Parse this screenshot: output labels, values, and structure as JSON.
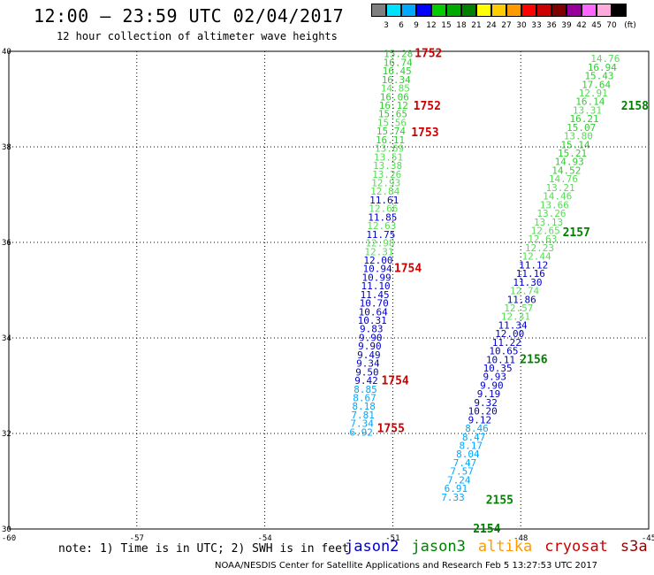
{
  "title": "12:00 – 23:59 UTC 02/04/2017",
  "subtitle": "12 hour collection of altimeter wave heights",
  "color_scale": {
    "unit": "(ft)",
    "labels": [
      "3",
      "6",
      "9",
      "12",
      "15",
      "18",
      "21",
      "24",
      "27",
      "30",
      "33",
      "36",
      "39",
      "42",
      "45",
      "70"
    ],
    "colors": [
      "#7f7f7f",
      "#00e0ff",
      "#00a8ff",
      "#0000ff",
      "#00cc00",
      "#00aa00",
      "#008000",
      "#ffff00",
      "#ffcc00",
      "#ff9900",
      "#ff0000",
      "#cc0000",
      "#800000",
      "#990099",
      "#ff66ff",
      "#ffaadd",
      "#000000"
    ]
  },
  "note": "note: 1) Time is in UTC; 2) SWH is in feet",
  "satellites": [
    {
      "name": "jason2",
      "color": "#0000cc"
    },
    {
      "name": "jason3",
      "color": "#008000"
    },
    {
      "name": "altika",
      "color": "#ff9900"
    },
    {
      "name": "cryosat",
      "color": "#cc0000"
    },
    {
      "name": "s3a",
      "color": "#990000"
    }
  ],
  "footer": "NOAA/NESDIS Center for Satellite Applications and Research    Feb  5 13:27:53 UTC 2017",
  "chart_data": {
    "type": "scatter",
    "xlim": [
      -60,
      -45
    ],
    "ylim": [
      30,
      40
    ],
    "x_ticks": [
      "-60",
      "-57",
      "-54",
      "-51",
      "-48",
      "-45"
    ],
    "y_ticks": [
      "30",
      "32",
      "34",
      "36",
      "38",
      "40"
    ],
    "grid": true,
    "track1_points": [
      {
        "label": "15.28",
        "lon": -50.87,
        "lat": 39.95,
        "color": "#33cc33"
      },
      {
        "label": "16.74",
        "lon": -50.88,
        "lat": 39.77,
        "color": "#33cc33"
      },
      {
        "label": "16.45",
        "lon": -50.9,
        "lat": 39.59,
        "color": "#33cc33"
      },
      {
        "label": "16.34",
        "lon": -50.92,
        "lat": 39.41,
        "color": "#33cc33"
      },
      {
        "label": "14.85",
        "lon": -50.94,
        "lat": 39.23,
        "color": "#55dd55"
      },
      {
        "label": "16.06",
        "lon": -50.96,
        "lat": 39.05,
        "color": "#33cc33"
      },
      {
        "label": "16.12",
        "lon": -50.98,
        "lat": 38.87,
        "color": "#33cc33"
      },
      {
        "label": "15.65",
        "lon": -51.0,
        "lat": 38.69,
        "color": "#33cc33"
      },
      {
        "label": "15.56",
        "lon": -51.02,
        "lat": 38.51,
        "color": "#55dd55"
      },
      {
        "label": "15.74",
        "lon": -51.04,
        "lat": 38.33,
        "color": "#33cc33"
      },
      {
        "label": "16.11",
        "lon": -51.06,
        "lat": 38.15,
        "color": "#33cc33"
      },
      {
        "label": "13.69",
        "lon": -51.08,
        "lat": 37.97,
        "color": "#55dd55"
      },
      {
        "label": "13.51",
        "lon": -51.1,
        "lat": 37.79,
        "color": "#55dd55"
      },
      {
        "label": "13.38",
        "lon": -51.12,
        "lat": 37.61,
        "color": "#55dd55"
      },
      {
        "label": "13.26",
        "lon": -51.14,
        "lat": 37.43,
        "color": "#55dd55"
      },
      {
        "label": "12.93",
        "lon": -51.16,
        "lat": 37.25,
        "color": "#55dd55"
      },
      {
        "label": "12.84",
        "lon": -51.18,
        "lat": 37.07,
        "color": "#55dd55"
      },
      {
        "label": "11.61",
        "lon": -51.2,
        "lat": 36.89,
        "color": "#0000cc"
      },
      {
        "label": "12.66",
        "lon": -51.22,
        "lat": 36.71,
        "color": "#55dd55"
      },
      {
        "label": "11.85",
        "lon": -51.24,
        "lat": 36.53,
        "color": "#0000cc"
      },
      {
        "label": "12.63",
        "lon": -51.26,
        "lat": 36.35,
        "color": "#55dd55"
      },
      {
        "label": "11.75",
        "lon": -51.28,
        "lat": 36.17,
        "color": "#0000cc"
      },
      {
        "label": "12.98",
        "lon": -51.3,
        "lat": 35.99,
        "color": "#55dd55"
      },
      {
        "label": "12.31",
        "lon": -51.32,
        "lat": 35.81,
        "color": "#55dd55"
      },
      {
        "label": "12.00",
        "lon": -51.34,
        "lat": 35.63,
        "color": "#0000cc"
      },
      {
        "label": "10.94",
        "lon": -51.36,
        "lat": 35.45,
        "color": "#0000cc"
      },
      {
        "label": "10.99",
        "lon": -51.38,
        "lat": 35.27,
        "color": "#0000cc"
      },
      {
        "label": "11.10",
        "lon": -51.4,
        "lat": 35.09,
        "color": "#0000cc"
      },
      {
        "label": "11.45",
        "lon": -51.42,
        "lat": 34.91,
        "color": "#0000cc"
      },
      {
        "label": "10.70",
        "lon": -51.44,
        "lat": 34.73,
        "color": "#0000cc"
      },
      {
        "label": "10.64",
        "lon": -51.46,
        "lat": 34.55,
        "color": "#0000cc"
      },
      {
        "label": "10.31",
        "lon": -51.48,
        "lat": 34.37,
        "color": "#0000cc"
      },
      {
        "label": "9.83",
        "lon": -51.5,
        "lat": 34.19,
        "color": "#0000cc"
      },
      {
        "label": "9.90",
        "lon": -51.52,
        "lat": 34.01,
        "color": "#0000cc"
      },
      {
        "label": "9.90",
        "lon": -51.54,
        "lat": 33.83,
        "color": "#0000cc"
      },
      {
        "label": "9.49",
        "lon": -51.56,
        "lat": 33.65,
        "color": "#0000cc"
      },
      {
        "label": "9.34",
        "lon": -51.58,
        "lat": 33.47,
        "color": "#0000cc"
      },
      {
        "label": "9.50",
        "lon": -51.6,
        "lat": 33.29,
        "color": "#0000cc"
      },
      {
        "label": "9.42",
        "lon": -51.62,
        "lat": 33.11,
        "color": "#0000cc"
      },
      {
        "label": "8.85",
        "lon": -51.64,
        "lat": 32.93,
        "color": "#00a8ff"
      },
      {
        "label": "8.67",
        "lon": -51.66,
        "lat": 32.75,
        "color": "#00a8ff"
      },
      {
        "label": "8.18",
        "lon": -51.68,
        "lat": 32.57,
        "color": "#00a8ff"
      },
      {
        "label": "7.81",
        "lon": -51.7,
        "lat": 32.39,
        "color": "#00a8ff"
      },
      {
        "label": "7.34",
        "lon": -51.72,
        "lat": 32.21,
        "color": "#00a8ff"
      },
      {
        "label": "6.92",
        "lon": -51.74,
        "lat": 32.03,
        "color": "#00a8ff"
      }
    ],
    "track2_points": [
      {
        "label": "14.76",
        "lon": -46.02,
        "lat": 39.85,
        "color": "#55dd55"
      },
      {
        "label": "16.94",
        "lon": -46.09,
        "lat": 39.67,
        "color": "#33cc33"
      },
      {
        "label": "15.43",
        "lon": -46.16,
        "lat": 39.49,
        "color": "#33cc33"
      },
      {
        "label": "17.64",
        "lon": -46.23,
        "lat": 39.31,
        "color": "#33cc33"
      },
      {
        "label": "12.91",
        "lon": -46.3,
        "lat": 39.13,
        "color": "#55dd55"
      },
      {
        "label": "16.14",
        "lon": -46.37,
        "lat": 38.95,
        "color": "#33cc33"
      },
      {
        "label": "13.31",
        "lon": -46.44,
        "lat": 38.77,
        "color": "#55dd55"
      },
      {
        "label": "16.21",
        "lon": -46.51,
        "lat": 38.59,
        "color": "#33cc33"
      },
      {
        "label": "15.07",
        "lon": -46.58,
        "lat": 38.41,
        "color": "#33cc33"
      },
      {
        "label": "13.80",
        "lon": -46.65,
        "lat": 38.23,
        "color": "#55dd55"
      },
      {
        "label": "15.14",
        "lon": -46.72,
        "lat": 38.05,
        "color": "#33cc33"
      },
      {
        "label": "15.21",
        "lon": -46.79,
        "lat": 37.87,
        "color": "#33cc33"
      },
      {
        "label": "14.93",
        "lon": -46.86,
        "lat": 37.69,
        "color": "#33cc33"
      },
      {
        "label": "14.52",
        "lon": -46.93,
        "lat": 37.51,
        "color": "#33cc33"
      },
      {
        "label": "14.76",
        "lon": -47.0,
        "lat": 37.33,
        "color": "#55dd55"
      },
      {
        "label": "13.21",
        "lon": -47.07,
        "lat": 37.15,
        "color": "#55dd55"
      },
      {
        "label": "14.46",
        "lon": -47.14,
        "lat": 36.97,
        "color": "#55dd55"
      },
      {
        "label": "13.66",
        "lon": -47.21,
        "lat": 36.79,
        "color": "#55dd55"
      },
      {
        "label": "13.26",
        "lon": -47.28,
        "lat": 36.61,
        "color": "#55dd55"
      },
      {
        "label": "13.13",
        "lon": -47.35,
        "lat": 36.43,
        "color": "#55dd55"
      },
      {
        "label": "12.65",
        "lon": -47.42,
        "lat": 36.25,
        "color": "#55dd55"
      },
      {
        "label": "12.63",
        "lon": -47.49,
        "lat": 36.07,
        "color": "#55dd55"
      },
      {
        "label": "12.23",
        "lon": -47.56,
        "lat": 35.89,
        "color": "#55dd55"
      },
      {
        "label": "12.44",
        "lon": -47.63,
        "lat": 35.71,
        "color": "#55dd55"
      },
      {
        "label": "11.12",
        "lon": -47.7,
        "lat": 35.53,
        "color": "#0000cc"
      },
      {
        "label": "11.16",
        "lon": -47.77,
        "lat": 35.35,
        "color": "#0000cc"
      },
      {
        "label": "11.30",
        "lon": -47.84,
        "lat": 35.17,
        "color": "#0000cc"
      },
      {
        "label": "12.74",
        "lon": -47.91,
        "lat": 34.99,
        "color": "#55dd55"
      },
      {
        "label": "11.86",
        "lon": -47.98,
        "lat": 34.81,
        "color": "#0000cc"
      },
      {
        "label": "12.57",
        "lon": -48.05,
        "lat": 34.63,
        "color": "#55dd55"
      },
      {
        "label": "12.31",
        "lon": -48.12,
        "lat": 34.45,
        "color": "#55dd55"
      },
      {
        "label": "11.34",
        "lon": -48.19,
        "lat": 34.27,
        "color": "#0000cc"
      },
      {
        "label": "12.00",
        "lon": -48.26,
        "lat": 34.09,
        "color": "#0000cc"
      },
      {
        "label": "11.22",
        "lon": -48.33,
        "lat": 33.91,
        "color": "#0000cc"
      },
      {
        "label": "10.65",
        "lon": -48.4,
        "lat": 33.73,
        "color": "#0000cc"
      },
      {
        "label": "10.11",
        "lon": -48.47,
        "lat": 33.55,
        "color": "#0000cc"
      },
      {
        "label": "10.35",
        "lon": -48.54,
        "lat": 33.37,
        "color": "#0000cc"
      },
      {
        "label": "9.93",
        "lon": -48.61,
        "lat": 33.19,
        "color": "#0000cc"
      },
      {
        "label": "9.90",
        "lon": -48.68,
        "lat": 33.01,
        "color": "#0000cc"
      },
      {
        "label": "9.19",
        "lon": -48.75,
        "lat": 32.83,
        "color": "#0000cc"
      },
      {
        "label": "9.32",
        "lon": -48.82,
        "lat": 32.65,
        "color": "#0000cc"
      },
      {
        "label": "10.20",
        "lon": -48.89,
        "lat": 32.47,
        "color": "#0000cc"
      },
      {
        "label": "9.12",
        "lon": -48.96,
        "lat": 32.29,
        "color": "#0000cc"
      },
      {
        "label": "8.46",
        "lon": -49.03,
        "lat": 32.11,
        "color": "#00a8ff"
      },
      {
        "label": "8.47",
        "lon": -49.1,
        "lat": 31.93,
        "color": "#00a8ff"
      },
      {
        "label": "8.17",
        "lon": -49.17,
        "lat": 31.75,
        "color": "#00a8ff"
      },
      {
        "label": "8.04",
        "lon": -49.24,
        "lat": 31.57,
        "color": "#00a8ff"
      },
      {
        "label": "7.47",
        "lon": -49.31,
        "lat": 31.39,
        "color": "#00a8ff"
      },
      {
        "label": "7.57",
        "lon": -49.38,
        "lat": 31.21,
        "color": "#00a8ff"
      },
      {
        "label": "7.24",
        "lon": -49.45,
        "lat": 31.03,
        "color": "#00a8ff"
      },
      {
        "label": "6.91",
        "lon": -49.52,
        "lat": 30.85,
        "color": "#00a8ff"
      },
      {
        "label": "7.33",
        "lon": -49.59,
        "lat": 30.67,
        "color": "#00a8ff"
      }
    ],
    "time_labels": [
      {
        "label": "1752",
        "lon": -50.82,
        "lat": 39.95,
        "color": "#cc0000"
      },
      {
        "label": "1752",
        "lon": -50.85,
        "lat": 38.85,
        "color": "#cc0000"
      },
      {
        "label": "1753",
        "lon": -50.9,
        "lat": 38.3,
        "color": "#cc0000"
      },
      {
        "label": "1754",
        "lon": -51.3,
        "lat": 35.45,
        "color": "#cc0000"
      },
      {
        "label": "1754",
        "lon": -51.6,
        "lat": 33.1,
        "color": "#cc0000"
      },
      {
        "label": "1755",
        "lon": -51.7,
        "lat": 32.1,
        "color": "#cc0000"
      },
      {
        "label": "2158",
        "lon": -45.98,
        "lat": 38.85,
        "color": "#008000"
      },
      {
        "label": "2157",
        "lon": -47.35,
        "lat": 36.2,
        "color": "#008000"
      },
      {
        "label": "2156",
        "lon": -48.35,
        "lat": 33.55,
        "color": "#008000"
      },
      {
        "label": "2155",
        "lon": -49.15,
        "lat": 30.6,
        "color": "#008000"
      },
      {
        "label": "2154",
        "lon": -49.45,
        "lat": 30.0,
        "color": "#008000"
      }
    ]
  }
}
